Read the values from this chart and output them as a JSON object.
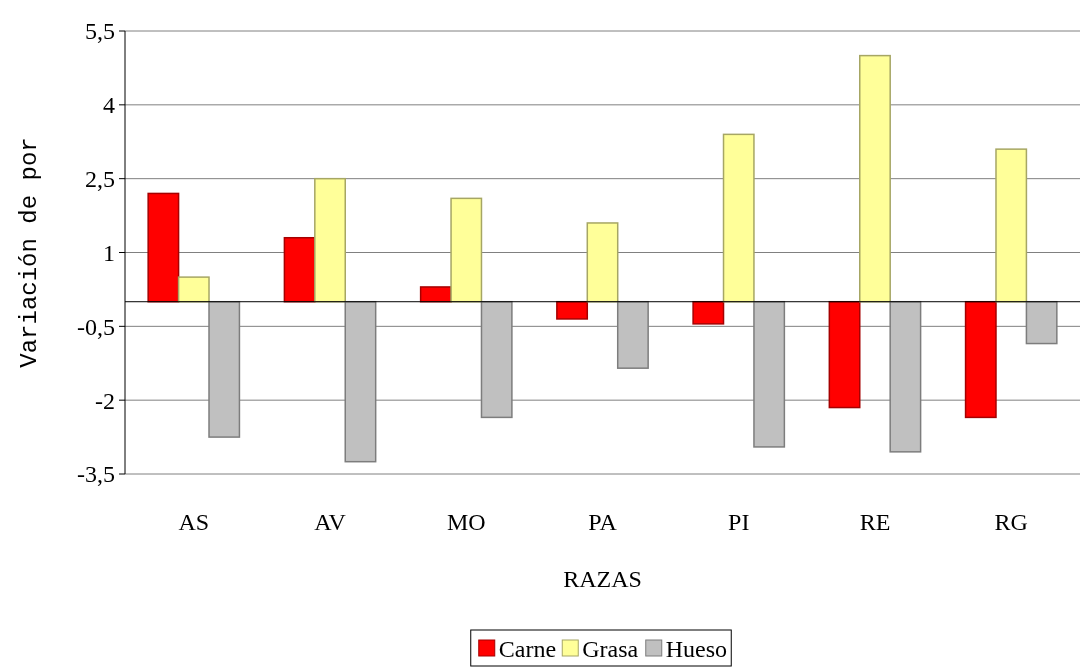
{
  "chart_data": {
    "type": "bar",
    "xlabel": "RAZAS",
    "ylabel": "Variación de por",
    "categories": [
      "AS",
      "AV",
      "MO",
      "PA",
      "PI",
      "RE",
      "RG"
    ],
    "series": [
      {
        "name": "Carne",
        "color": "#ff0000",
        "values": [
          2.2,
          1.3,
          0.3,
          -0.35,
          -0.45,
          -2.15,
          -2.35
        ]
      },
      {
        "name": "Grasa",
        "color": "#ffff99",
        "values": [
          0.5,
          2.5,
          2.1,
          1.6,
          3.4,
          5.0,
          3.1
        ]
      },
      {
        "name": "Hueso",
        "color": "#c0c0c0",
        "values": [
          -2.75,
          -3.25,
          -2.35,
          -1.35,
          -2.95,
          -3.05,
          -0.85
        ]
      }
    ],
    "ylim": [
      -3.5,
      5.5
    ],
    "yticks": [
      {
        "value": 5.5,
        "label": "5,5"
      },
      4,
      {
        "value": 2.5,
        "label": "2,5"
      },
      1,
      {
        "value": -0.5,
        "label": "-0,5"
      },
      -2,
      {
        "value": -3.5,
        "label": "-3,5"
      }
    ],
    "grid": "y",
    "legend": "bottom"
  }
}
